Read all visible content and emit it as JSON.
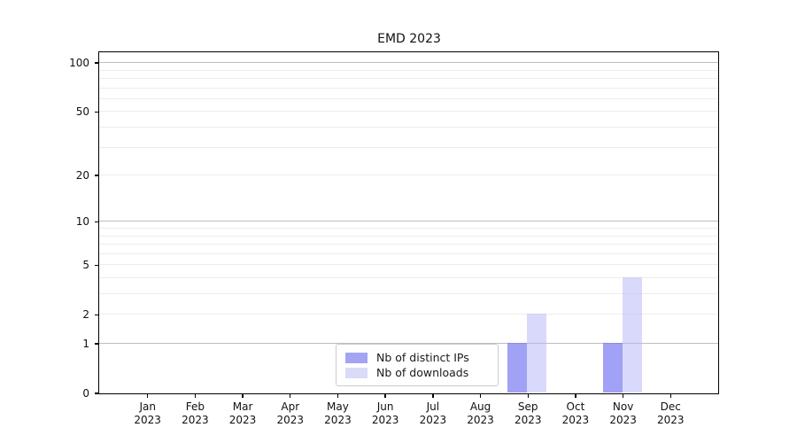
{
  "title": "EMD 2023",
  "colors": {
    "distinct_ips_bar": "rgba(110,110,240,0.65)",
    "downloads_bar": "rgba(185,185,247,0.55)",
    "distinct_ips_swatch": "#a4a4f3",
    "downloads_swatch": "#dadaf9",
    "grid_major": "#bdbdbd",
    "grid_minor": "#ececec",
    "spine": "#000000",
    "legend_border": "#cccccc"
  },
  "chart_data": {
    "type": "bar",
    "title": "EMD 2023",
    "categories": [
      "Jan",
      "Feb",
      "Mar",
      "Apr",
      "May",
      "Jun",
      "Jul",
      "Aug",
      "Sep",
      "Oct",
      "Nov",
      "Dec"
    ],
    "year_label": "2023",
    "series": [
      {
        "name": "Nb of distinct IPs",
        "values": [
          0,
          0,
          0,
          0,
          0,
          0,
          0,
          0,
          1,
          0,
          1,
          0
        ]
      },
      {
        "name": "Nb of downloads",
        "values": [
          0,
          0,
          0,
          0,
          0,
          0,
          0,
          0,
          2,
          0,
          4,
          0
        ]
      }
    ],
    "yticks": [
      0,
      1,
      2,
      5,
      10,
      20,
      50,
      100
    ],
    "ylim": [
      0,
      115
    ],
    "yscale": "log1p",
    "grid": "horizontal-minor-and-major",
    "grid_major_values": [
      1,
      10,
      100
    ],
    "grid_minor_values": [
      2,
      3,
      4,
      5,
      6,
      7,
      8,
      9,
      20,
      30,
      40,
      50,
      60,
      70,
      80,
      90
    ],
    "legend_position": "lower center",
    "xlabel": "",
    "ylabel": ""
  }
}
